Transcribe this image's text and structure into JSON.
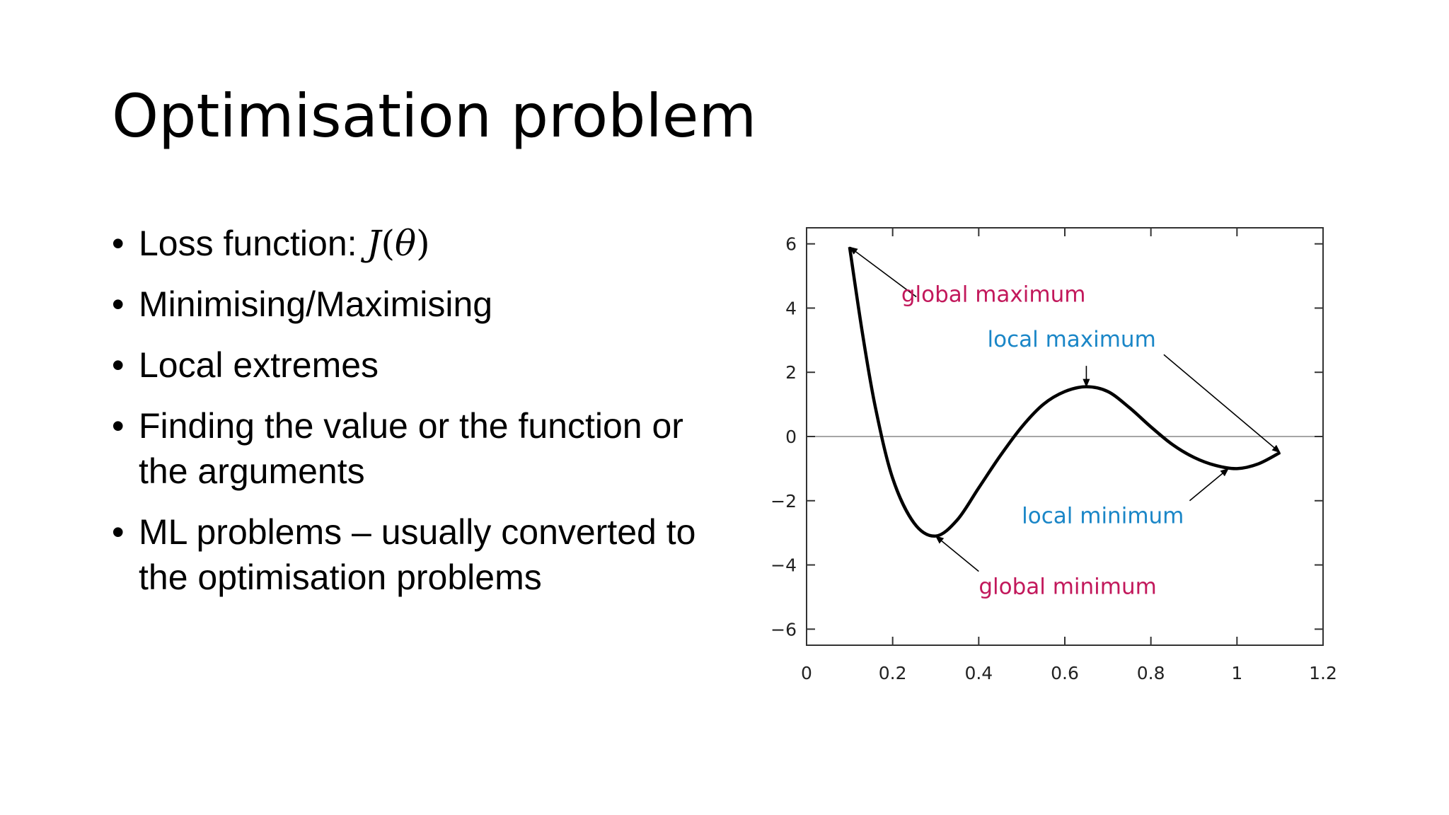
{
  "slide": {
    "title": "Optimisation problem",
    "bullets": [
      {
        "text": "Loss function: ",
        "math": "J",
        "math_arg": "θ"
      },
      {
        "text": "Minimising/Maximising"
      },
      {
        "text": "Local extremes"
      },
      {
        "text": "Finding the value or the function or the arguments"
      },
      {
        "text": "ML problems – usually converted to the optimisation problems"
      }
    ],
    "bullet_symbol": "•"
  },
  "chart_data": {
    "type": "line",
    "title": "",
    "xlabel": "",
    "ylabel": "",
    "xlim": [
      0,
      1.2
    ],
    "ylim": [
      -6.5,
      6.5
    ],
    "xticks": [
      0,
      0.2,
      0.4,
      0.6,
      0.8,
      1,
      1.2
    ],
    "xtick_labels": [
      "0",
      "0.2",
      "0.4",
      "0.6",
      "0.8",
      "1",
      "1.2"
    ],
    "yticks": [
      6,
      4,
      2,
      0,
      -2,
      -4,
      -6
    ],
    "ytick_labels": [
      "6",
      "4",
      "2",
      "0",
      "−2",
      "−4",
      "−6"
    ],
    "grid": false,
    "zero_line": true,
    "series": [
      {
        "x": [
          0.1,
          0.13,
          0.16,
          0.2,
          0.25,
          0.3,
          0.35,
          0.4,
          0.45,
          0.5,
          0.55,
          0.6,
          0.65,
          0.7,
          0.75,
          0.8,
          0.85,
          0.9,
          0.95,
          1.0,
          1.05,
          1.1
        ],
        "y": [
          5.9,
          3.2,
          0.9,
          -1.3,
          -2.7,
          -3.1,
          -2.6,
          -1.6,
          -0.6,
          0.3,
          1.0,
          1.4,
          1.55,
          1.4,
          0.9,
          0.3,
          -0.25,
          -0.65,
          -0.9,
          -1.0,
          -0.85,
          -0.5
        ]
      }
    ],
    "annotations": [
      {
        "text": "global maximum",
        "x": 0.1,
        "y": 5.9,
        "color": "#c2185b",
        "text_x": 0.22,
        "text_y": 4.2
      },
      {
        "text": "local maximum",
        "x": 0.65,
        "y": 1.55,
        "color": "#1a86c7",
        "text_x": 0.42,
        "text_y": 2.8
      },
      {
        "text": "",
        "x": 1.1,
        "y": -0.5,
        "color": "#000000",
        "text_x": 0.82,
        "text_y": 2.6
      },
      {
        "text": "local minimum",
        "x": 0.98,
        "y": -1.0,
        "color": "#1a86c7",
        "text_x": 0.5,
        "text_y": -2.7
      },
      {
        "text": "global minimum",
        "x": 0.3,
        "y": -3.1,
        "color": "#c2185b",
        "text_x": 0.4,
        "text_y": -4.9
      }
    ]
  }
}
